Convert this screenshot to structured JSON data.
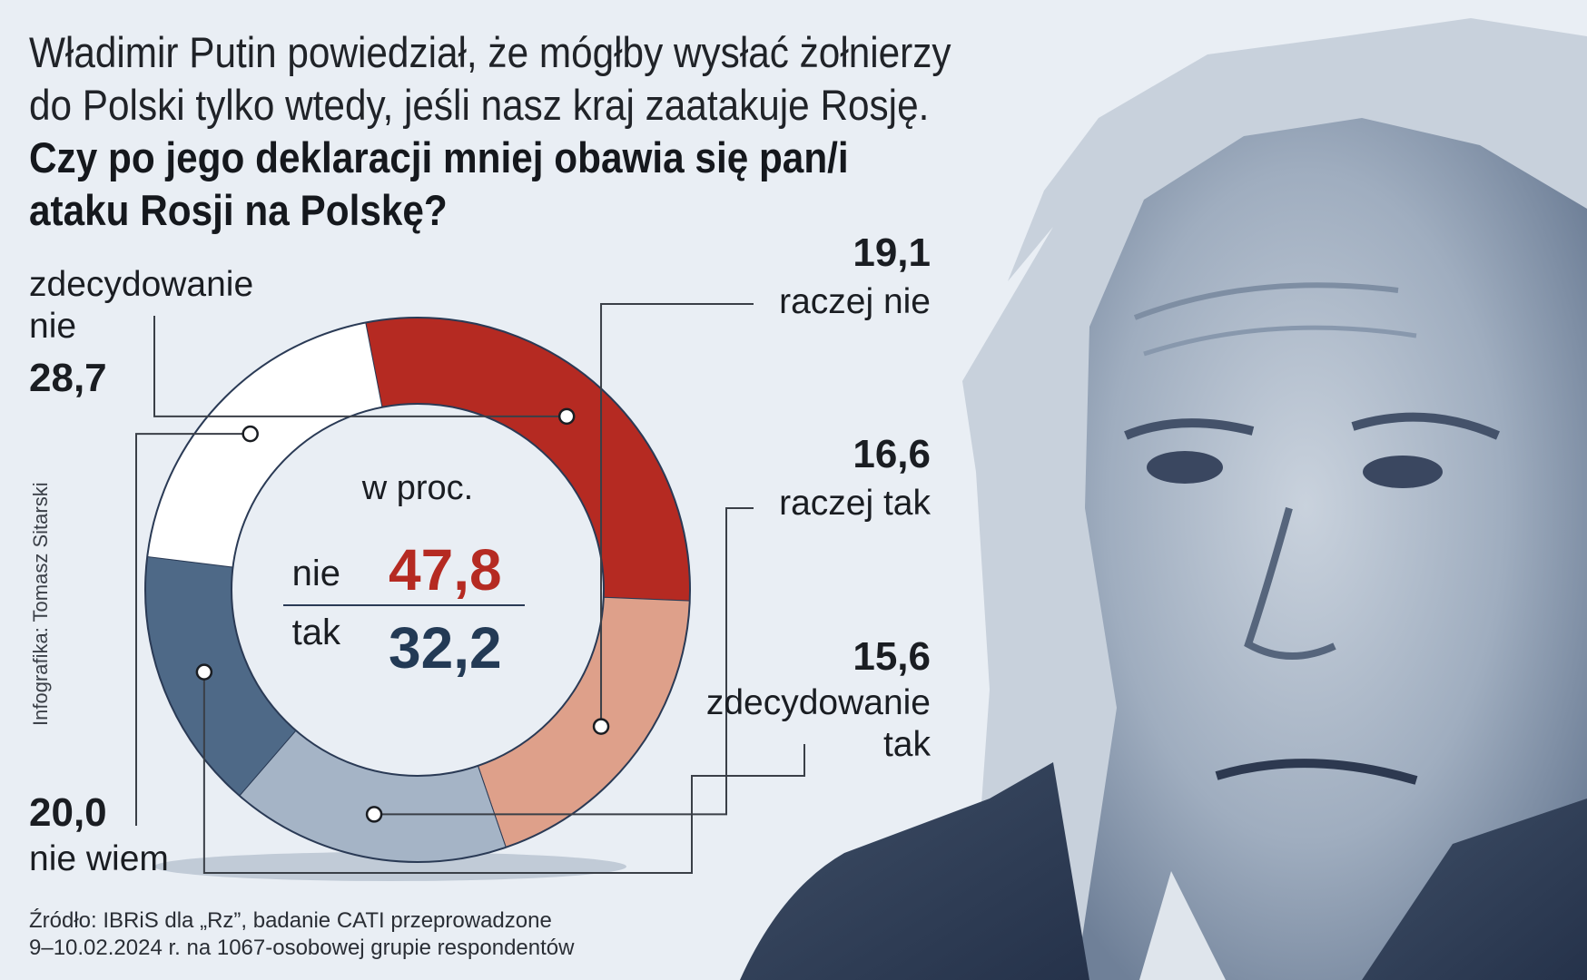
{
  "title": {
    "line1": "Władimir Putin powiedział, że mógłby wysłać żołnierzy",
    "line2": "do Polski tylko wtedy, jeśli nasz kraj zaatakuje Rosję.",
    "question1": "Czy po jego deklaracji mniej obawia się pan/i",
    "question2": "ataku Rosji na Polskę?"
  },
  "chart_data": {
    "type": "pie",
    "unit_label": "w proc.",
    "slices": [
      {
        "label_line1": "zdecydowanie",
        "label_line2": "nie",
        "value": 28.7,
        "value_text": "28,7",
        "color": "#b52a22"
      },
      {
        "label_line1": "raczej nie",
        "label_line2": "",
        "value": 19.1,
        "value_text": "19,1",
        "color": "#dea08a"
      },
      {
        "label_line1": "raczej tak",
        "label_line2": "",
        "value": 16.6,
        "value_text": "16,6",
        "color": "#a5b4c6"
      },
      {
        "label_line1": "zdecydowanie",
        "label_line2": "tak",
        "value": 15.6,
        "value_text": "15,6",
        "color": "#4e6987"
      },
      {
        "label_line1": "nie wiem",
        "label_line2": "",
        "value": 20.0,
        "value_text": "20,0",
        "color": "#ffffff"
      }
    ],
    "totals": {
      "no_label": "nie",
      "no_value": "47,8",
      "no_color": "#b52a22",
      "yes_label": "tak",
      "yes_value": "32,2",
      "yes_color": "#233a55"
    }
  },
  "credit": "Infografika: Tomasz Sitarski",
  "source": {
    "line1": "Źródło: IBRiS dla „Rz”, badanie CATI przeprowadzone",
    "line2": "9–10.02.2024 r. na 1067-osobowej grupie respondentów"
  }
}
